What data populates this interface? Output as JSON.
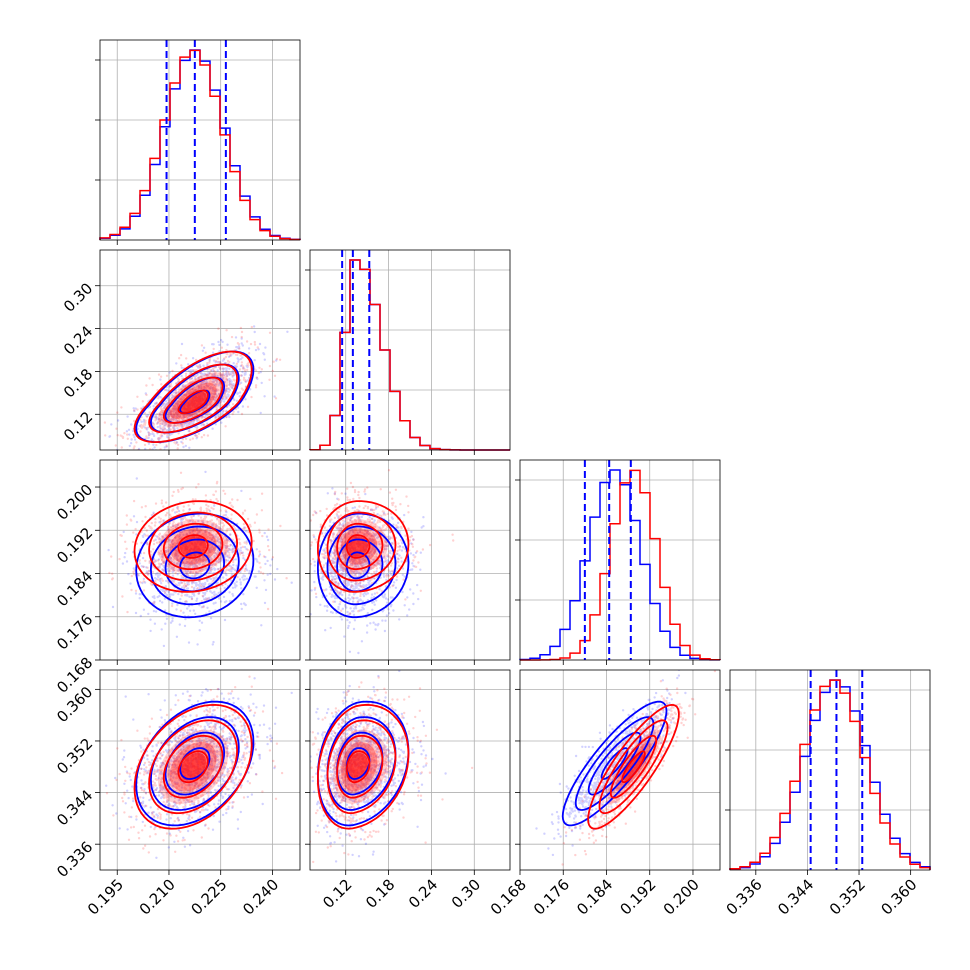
{
  "chart_data": {
    "type": "corner",
    "title": "",
    "grid": true,
    "colors": {
      "series_a": "#0000ff",
      "series_b": "#ff0000",
      "frame": "#000000",
      "grid": "#b0b0b0"
    },
    "series": [
      {
        "name": "",
        "color": "#0000ff",
        "means": [
          0.2175,
          0.135,
          0.1855,
          0.3485
        ],
        "sigmas": [
          0.0085,
          0.027,
          0.0048,
          0.0048
        ],
        "quantiles": [
          [
            0.2093,
            0.2175,
            0.2265
          ],
          [
            0.115,
            0.13,
            0.153
          ],
          [
            0.18,
            0.1845,
            0.1885
          ],
          [
            0.3445,
            0.3485,
            0.3525
          ]
        ],
        "correlations": {
          "p0_p1": 0.65,
          "p0_p2": 0.1,
          "p0_p3": 0.35,
          "p1_p2": 0.05,
          "p1_p3": 0.2,
          "p2_p3": 0.85
        }
      },
      {
        "name": "",
        "color": "#ff0000",
        "means": [
          0.217,
          0.135,
          0.189,
          0.348
        ],
        "sigmas": [
          0.0085,
          0.027,
          0.0042,
          0.0048
        ],
        "quantiles": [
          [
            0.2093,
            0.2175,
            0.2265
          ],
          [
            0.115,
            0.13,
            0.153
          ],
          [
            0.18,
            0.1845,
            0.1885
          ],
          [
            0.3445,
            0.3485,
            0.3525
          ]
        ],
        "correlations": {
          "p0_p1": 0.65,
          "p0_p2": 0.1,
          "p0_p3": 0.35,
          "p1_p2": 0.05,
          "p1_p3": 0.2,
          "p2_p3": 0.85
        }
      }
    ],
    "parameters": [
      {
        "range": [
          0.19,
          0.248
        ],
        "ticks": [
          "0.195",
          "0.210",
          "0.225",
          "0.240"
        ],
        "tick_values": [
          0.195,
          0.21,
          0.225,
          0.24
        ]
      },
      {
        "range": [
          0.07,
          0.35
        ],
        "ticks": [
          "0.12",
          "0.18",
          "0.24",
          "0.30"
        ],
        "tick_values": [
          0.12,
          0.18,
          0.24,
          0.3
        ]
      },
      {
        "range": [
          0.168,
          0.205
        ],
        "ticks": [
          "0.168",
          "0.176",
          "0.184",
          "0.192",
          "0.200"
        ],
        "tick_values": [
          0.168,
          0.176,
          0.184,
          0.192,
          0.2
        ]
      },
      {
        "range": [
          0.332,
          0.363
        ],
        "ticks": [
          "0.336",
          "0.344",
          "0.352",
          "0.360"
        ],
        "tick_values": [
          0.336,
          0.344,
          0.352,
          0.36
        ]
      }
    ],
    "contour_levels_sigma": [
      0.5,
      1.0,
      1.5,
      2.0
    ],
    "histogram_bins": 20
  }
}
